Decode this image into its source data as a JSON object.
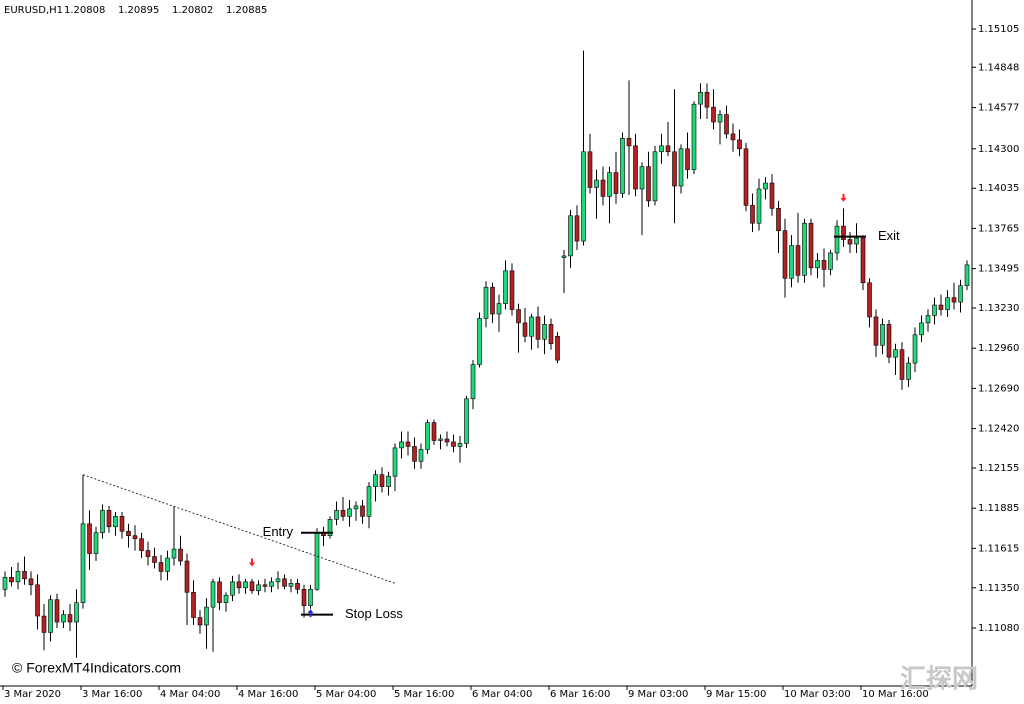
{
  "chart_data": {
    "type": "candlestick",
    "header": {
      "symbol": "EURUSD,H1",
      "open": 1.20808,
      "high": 1.20895,
      "low": 1.20802,
      "close": 1.20885
    },
    "watermark": "© ForexMT4Indicators.com",
    "logo": "汇探网",
    "up_color": "#22d67a",
    "down_color": "#b22222",
    "wick_color": "#000000",
    "ylim": [
      1.1069,
      1.153
    ],
    "yticks": [
      1.15105,
      1.14848,
      1.14577,
      {
        "value": 1.143,
        "label": "1.14300"
      },
      1.14035,
      1.13765,
      1.13495,
      {
        "value": 1.1323,
        "label": "1.13230"
      },
      {
        "value": 1.1296,
        "label": "1.12960"
      },
      {
        "value": 1.1269,
        "label": "1.12690"
      },
      {
        "value": 1.1242,
        "label": "1.12420"
      },
      1.12155,
      1.11885,
      1.11615,
      {
        "value": 1.1135,
        "label": "1.11350"
      },
      {
        "value": 1.1108,
        "label": "1.11080"
      }
    ],
    "categories": [
      "3 Mar 2020",
      null,
      null,
      null,
      null,
      null,
      null,
      null,
      null,
      null,
      null,
      null,
      "3 Mar 16:00",
      null,
      null,
      null,
      null,
      null,
      null,
      null,
      null,
      null,
      null,
      null,
      "4 Mar 04:00",
      null,
      null,
      null,
      null,
      null,
      null,
      null,
      null,
      null,
      null,
      null,
      "4 Mar 16:00",
      null,
      null,
      null,
      null,
      null,
      null,
      null,
      null,
      null,
      null,
      null,
      "5 Mar 04:00",
      null,
      null,
      null,
      null,
      null,
      null,
      null,
      null,
      null,
      null,
      null,
      "5 Mar 16:00",
      null,
      null,
      null,
      null,
      null,
      null,
      null,
      null,
      null,
      null,
      null,
      "6 Mar 04:00",
      null,
      null,
      null,
      null,
      null,
      null,
      null,
      null,
      null,
      null,
      null,
      "6 Mar 16:00",
      null,
      null,
      null,
      null,
      null,
      null,
      null,
      null,
      null,
      null,
      null,
      "9 Mar 03:00",
      null,
      null,
      null,
      null,
      null,
      null,
      null,
      null,
      null,
      null,
      null,
      "9 Mar 15:00",
      null,
      null,
      null,
      null,
      null,
      null,
      null,
      null,
      null,
      null,
      null,
      "10 Mar 03:00",
      null,
      null,
      null,
      null,
      null,
      null,
      null,
      null,
      null,
      null,
      null,
      "10 Mar 16:00",
      null,
      null,
      null,
      null,
      null,
      null,
      null,
      null,
      null,
      null,
      null,
      null,
      null,
      null,
      null
    ],
    "candles": [
      [
        1.1134,
        1.1146,
        1.1129,
        1.1142
      ],
      [
        1.1142,
        1.1149,
        1.1136,
        1.1139
      ],
      [
        1.1139,
        1.1152,
        1.1134,
        1.1146
      ],
      [
        1.1146,
        1.1156,
        1.1137,
        1.1141
      ],
      [
        1.1141,
        1.1146,
        1.113,
        1.1137
      ],
      [
        1.1137,
        1.1144,
        1.1107,
        1.1116
      ],
      [
        1.1116,
        1.1124,
        1.1093,
        1.1105
      ],
      [
        1.1105,
        1.113,
        1.1099,
        1.1127
      ],
      [
        1.1127,
        1.1131,
        1.1108,
        1.1112
      ],
      [
        1.1112,
        1.112,
        1.1108,
        1.1117
      ],
      [
        1.1117,
        1.1124,
        1.1106,
        1.1112
      ],
      [
        1.1112,
        1.1134,
        1.1088,
        1.1125
      ],
      [
        1.1125,
        1.1211,
        1.1121,
        1.1178
      ],
      [
        1.1178,
        1.1187,
        1.1147,
        1.1158
      ],
      [
        1.1158,
        1.1176,
        1.1153,
        1.1172
      ],
      [
        1.1172,
        1.1191,
        1.1168,
        1.1187
      ],
      [
        1.1187,
        1.119,
        1.1172,
        1.1176
      ],
      [
        1.1176,
        1.1186,
        1.117,
        1.1183
      ],
      [
        1.1183,
        1.1186,
        1.1168,
        1.1173
      ],
      [
        1.1173,
        1.1178,
        1.1162,
        1.117
      ],
      [
        1.117,
        1.1177,
        1.116,
        1.1168
      ],
      [
        1.1168,
        1.1172,
        1.1155,
        1.116
      ],
      [
        1.116,
        1.1166,
        1.115,
        1.1156
      ],
      [
        1.1156,
        1.1162,
        1.1148,
        1.1152
      ],
      [
        1.1152,
        1.1157,
        1.114,
        1.1146
      ],
      [
        1.1146,
        1.116,
        1.114,
        1.1155
      ],
      [
        1.1155,
        1.119,
        1.115,
        1.1161
      ],
      [
        1.1161,
        1.117,
        1.115,
        1.1153
      ],
      [
        1.1153,
        1.1158,
        1.111,
        1.1132
      ],
      [
        1.1132,
        1.114,
        1.111,
        1.1115
      ],
      [
        1.1115,
        1.112,
        1.1104,
        1.111
      ],
      [
        1.111,
        1.1128,
        1.1094,
        1.1122
      ],
      [
        1.1122,
        1.1141,
        1.1092,
        1.1139
      ],
      [
        1.1139,
        1.1142,
        1.112,
        1.1125
      ],
      [
        1.1125,
        1.1132,
        1.1119,
        1.113
      ],
      [
        1.113,
        1.1143,
        1.1126,
        1.1139
      ],
      [
        1.1139,
        1.1144,
        1.1131,
        1.1135
      ],
      [
        1.1135,
        1.1141,
        1.1131,
        1.1139
      ],
      [
        1.1139,
        1.1141,
        1.1131,
        1.1133
      ],
      [
        1.1133,
        1.114,
        1.113,
        1.1137
      ],
      [
        1.1137,
        1.1141,
        1.1132,
        1.1136
      ],
      [
        1.1136,
        1.1142,
        1.1132,
        1.1139
      ],
      [
        1.1139,
        1.1146,
        1.1134,
        1.1141
      ],
      [
        1.1141,
        1.1144,
        1.1134,
        1.1136
      ],
      [
        1.1136,
        1.1141,
        1.1132,
        1.1138
      ],
      [
        1.1138,
        1.1141,
        1.1131,
        1.1134
      ],
      [
        1.1134,
        1.1137,
        1.1115,
        1.1123
      ],
      [
        1.1123,
        1.1137,
        1.1121,
        1.1134
      ],
      [
        1.1134,
        1.1175,
        1.1133,
        1.1172
      ],
      [
        1.1172,
        1.1176,
        1.1163,
        1.117
      ],
      [
        1.117,
        1.1183,
        1.1168,
        1.1181
      ],
      [
        1.1181,
        1.1193,
        1.1177,
        1.1187
      ],
      [
        1.1187,
        1.1196,
        1.118,
        1.1183
      ],
      [
        1.1183,
        1.1194,
        1.1176,
        1.1188
      ],
      [
        1.1188,
        1.1193,
        1.118,
        1.119
      ],
      [
        1.119,
        1.1194,
        1.1178,
        1.1183
      ],
      [
        1.1183,
        1.1206,
        1.1175,
        1.1203
      ],
      [
        1.1203,
        1.1214,
        1.1193,
        1.1211
      ],
      [
        1.1211,
        1.1216,
        1.1199,
        1.1203
      ],
      [
        1.1203,
        1.1213,
        1.1197,
        1.121
      ],
      [
        1.121,
        1.1232,
        1.12,
        1.1229
      ],
      [
        1.1229,
        1.124,
        1.1222,
        1.1233
      ],
      [
        1.1233,
        1.124,
        1.1224,
        1.123
      ],
      [
        1.123,
        1.1236,
        1.1215,
        1.122
      ],
      [
        1.122,
        1.1232,
        1.1215,
        1.1228
      ],
      [
        1.1228,
        1.1248,
        1.1225,
        1.1246
      ],
      [
        1.1246,
        1.1248,
        1.1231,
        1.1234
      ],
      [
        1.1234,
        1.1238,
        1.1228,
        1.1235
      ],
      [
        1.1235,
        1.124,
        1.123,
        1.1233
      ],
      [
        1.1233,
        1.1238,
        1.1226,
        1.123
      ],
      [
        1.123,
        1.1237,
        1.1219,
        1.1232
      ],
      [
        1.1232,
        1.1264,
        1.1229,
        1.1262
      ],
      [
        1.1262,
        1.1288,
        1.1255,
        1.1285
      ],
      [
        1.1285,
        1.132,
        1.1283,
        1.1316
      ],
      [
        1.1316,
        1.1341,
        1.131,
        1.1337
      ],
      [
        1.1337,
        1.134,
        1.1313,
        1.1319
      ],
      [
        1.1319,
        1.1332,
        1.1307,
        1.1326
      ],
      [
        1.1326,
        1.1355,
        1.1322,
        1.1348
      ],
      [
        1.1348,
        1.1353,
        1.1318,
        1.1322
      ],
      [
        1.1322,
        1.1326,
        1.1293,
        1.1313
      ],
      [
        1.1313,
        1.1323,
        1.13,
        1.1304
      ],
      [
        1.1304,
        1.1319,
        1.1295,
        1.1317
      ],
      [
        1.1317,
        1.1324,
        1.1296,
        1.1302
      ],
      [
        1.1302,
        1.1318,
        1.1292,
        1.1312
      ],
      [
        1.1312,
        1.1316,
        1.1295,
        1.1299
      ],
      [
        1.1304,
        1.1307,
        1.1286,
        1.1288
      ],
      [
        1.1357,
        1.1362,
        1.1333,
        1.1358
      ],
      [
        1.1358,
        1.1389,
        1.135,
        1.1385
      ],
      [
        1.1385,
        1.1392,
        1.1362,
        1.1368
      ],
      [
        1.1368,
        1.1496,
        1.1365,
        1.1428
      ],
      [
        1.1428,
        1.144,
        1.14,
        1.1404
      ],
      [
        1.1404,
        1.1416,
        1.1383,
        1.1409
      ],
      [
        1.1409,
        1.1418,
        1.1392,
        1.1398
      ],
      [
        1.1398,
        1.1418,
        1.138,
        1.1414
      ],
      [
        1.1414,
        1.1428,
        1.1393,
        1.14
      ],
      [
        1.14,
        1.1441,
        1.1397,
        1.1437
      ],
      [
        1.1437,
        1.1476,
        1.1399,
        1.1432
      ],
      [
        1.1432,
        1.144,
        1.1398,
        1.1403
      ],
      [
        1.1403,
        1.1421,
        1.1372,
        1.1418
      ],
      [
        1.1418,
        1.1428,
        1.1391,
        1.1395
      ],
      [
        1.1395,
        1.1432,
        1.1392,
        1.1428
      ],
      [
        1.1428,
        1.144,
        1.142,
        1.1432
      ],
      [
        1.1432,
        1.1448,
        1.1425,
        1.1428
      ],
      [
        1.1428,
        1.147,
        1.138,
        1.1405
      ],
      [
        1.1405,
        1.1433,
        1.14,
        1.143
      ],
      [
        1.143,
        1.1441,
        1.141,
        1.1416
      ],
      [
        1.1416,
        1.1462,
        1.1413,
        1.146
      ],
      [
        1.146,
        1.1474,
        1.145,
        1.1468
      ],
      [
        1.1468,
        1.1474,
        1.145,
        1.1458
      ],
      [
        1.1458,
        1.147,
        1.1443,
        1.1448
      ],
      [
        1.1448,
        1.1456,
        1.1433,
        1.1453
      ],
      [
        1.1453,
        1.1459,
        1.1437,
        1.144
      ],
      [
        1.144,
        1.1447,
        1.1428,
        1.1436
      ],
      [
        1.1436,
        1.1443,
        1.1425,
        1.143
      ],
      [
        1.143,
        1.1434,
        1.1388,
        1.1392
      ],
      [
        1.1392,
        1.14,
        1.1374,
        1.138
      ],
      [
        1.138,
        1.141,
        1.1375,
        1.1403
      ],
      [
        1.1403,
        1.1411,
        1.1396,
        1.1407
      ],
      [
        1.1407,
        1.1413,
        1.1385,
        1.139
      ],
      [
        1.139,
        1.1395,
        1.136,
        1.1375
      ],
      [
        1.1375,
        1.1383,
        1.133,
        1.1343
      ],
      [
        1.1343,
        1.1372,
        1.1337,
        1.1365
      ],
      [
        1.1365,
        1.1387,
        1.134,
        1.1345
      ],
      [
        1.1345,
        1.1383,
        1.134,
        1.138
      ],
      [
        1.138,
        1.1383,
        1.1345,
        1.135
      ],
      [
        1.135,
        1.136,
        1.1343,
        1.1355
      ],
      [
        1.1355,
        1.1363,
        1.1337,
        1.1349
      ],
      [
        1.1349,
        1.1362,
        1.1345,
        1.136
      ],
      [
        1.136,
        1.1382,
        1.1355,
        1.1378
      ],
      [
        1.1378,
        1.139,
        1.1364,
        1.1369
      ],
      [
        1.1369,
        1.1374,
        1.136,
        1.1366
      ],
      [
        1.1366,
        1.138,
        1.136,
        1.137
      ],
      [
        1.137,
        1.1372,
        1.1335,
        1.134
      ],
      [
        1.134,
        1.1343,
        1.131,
        1.1317
      ],
      [
        1.1317,
        1.1322,
        1.129,
        1.1298
      ],
      [
        1.1298,
        1.1316,
        1.1292,
        1.1312
      ],
      [
        1.1312,
        1.1315,
        1.1286,
        1.129
      ],
      [
        1.129,
        1.1299,
        1.1278,
        1.1295
      ],
      [
        1.1295,
        1.13,
        1.1268,
        1.1275
      ],
      [
        1.1275,
        1.129,
        1.127,
        1.1286
      ],
      [
        1.1286,
        1.131,
        1.128,
        1.1305
      ],
      [
        1.1305,
        1.1318,
        1.13,
        1.1313
      ],
      [
        1.1313,
        1.1322,
        1.1307,
        1.1318
      ],
      [
        1.1318,
        1.133,
        1.1312,
        1.1325
      ],
      [
        1.1325,
        1.1332,
        1.1318,
        1.1322
      ],
      [
        1.1322,
        1.1335,
        1.1317,
        1.133
      ],
      [
        1.133,
        1.134,
        1.1322,
        1.1327
      ],
      [
        1.1327,
        1.1342,
        1.132,
        1.1338
      ],
      [
        1.1338,
        1.1355,
        1.1335,
        1.1352
      ]
    ],
    "trendline": {
      "from": {
        "index": 12,
        "price": 1.1211
      },
      "to": {
        "index": 60,
        "price": 1.1138
      }
    },
    "levels": [
      {
        "label": "Entry",
        "price": 1.1172,
        "start": 46,
        "end": 50,
        "label_side": "left"
      },
      {
        "label": "Stop Loss",
        "price": 1.1117,
        "start": 46,
        "end": 50,
        "label_side": "right"
      },
      {
        "label": "Exit",
        "price": 1.1371,
        "start": 128,
        "end": 132,
        "label_side": "right"
      }
    ],
    "arrows": [
      {
        "index": 38,
        "price": 1.1152,
        "direction": "down",
        "color": "#ff2020"
      },
      {
        "index": 47,
        "price": 1.1118,
        "direction": "up",
        "color": "#1f2fd0"
      },
      {
        "index": 129,
        "price": 1.1397,
        "direction": "down",
        "color": "#ff2020"
      }
    ]
  }
}
